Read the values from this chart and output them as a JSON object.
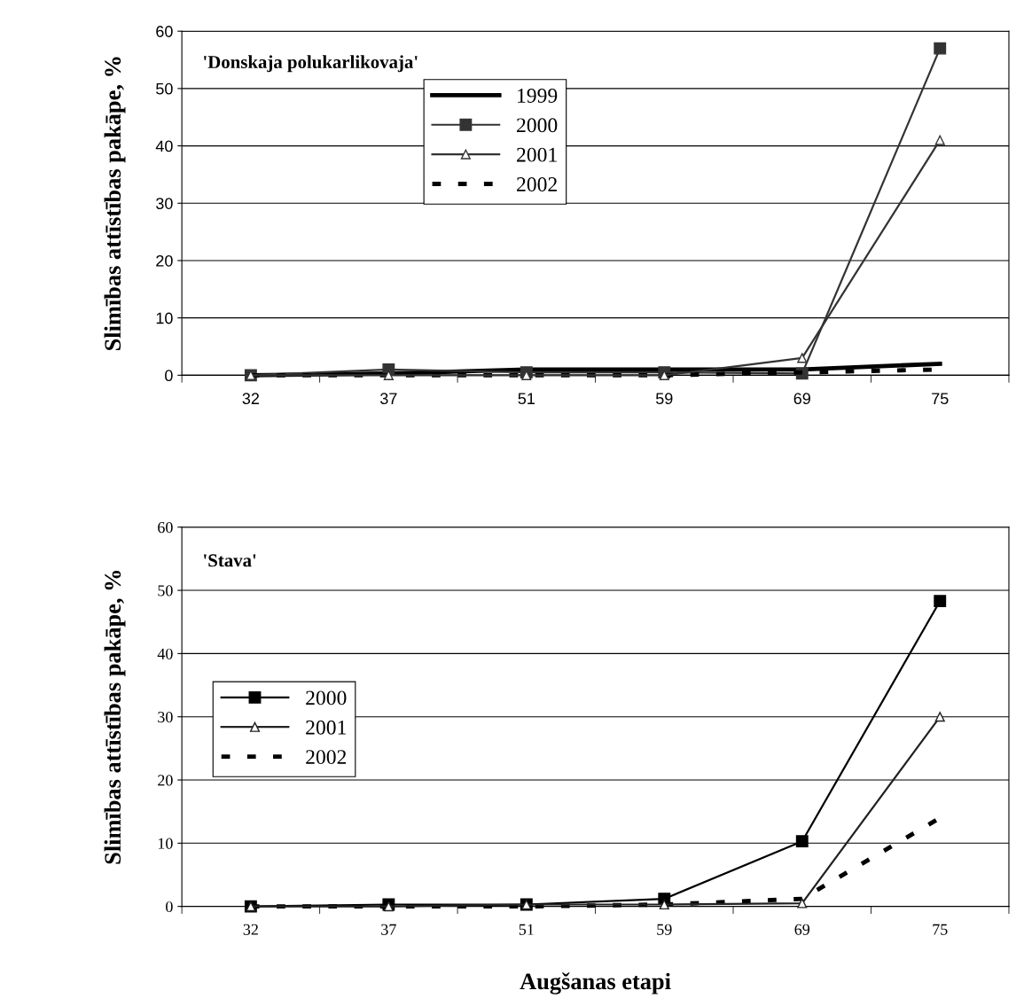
{
  "chart_data": [
    {
      "type": "line",
      "title": "'Donskaja polukarlikovaja'",
      "ylabel": "Slimības attīstības pakāpe, %",
      "categories": [
        "32",
        "37",
        "51",
        "59",
        "69",
        "75"
      ],
      "ylim": [
        0,
        60
      ],
      "yticks": [
        0,
        10,
        20,
        30,
        40,
        50,
        60
      ],
      "grid": "y",
      "legend": "top",
      "series": [
        {
          "name": "1999",
          "color": "#000000",
          "values": [
            0,
            0.3,
            1,
            1,
            1,
            2
          ],
          "marker": "none",
          "line_style": "solid"
        },
        {
          "name": "2000",
          "color": "#333333",
          "values": [
            0,
            1,
            0.5,
            0.5,
            0.3,
            57
          ],
          "marker": "square",
          "line_style": "solid"
        },
        {
          "name": "2001",
          "color": "#333333",
          "values": [
            0,
            0,
            0,
            0,
            3,
            41
          ],
          "marker": "triangle",
          "line_style": "solid"
        },
        {
          "name": "2002",
          "color": "#000000",
          "values": [
            0,
            0,
            0,
            0,
            0.5,
            1
          ],
          "marker": "none",
          "line_style": "dashed"
        }
      ]
    },
    {
      "type": "line",
      "title": "'Stava'",
      "xlabel": "Augšanas etapi",
      "ylabel": "Slimības attīstības pakāpe, %",
      "categories": [
        "32",
        "37",
        "51",
        "59",
        "69",
        "75"
      ],
      "ylim": [
        0,
        60
      ],
      "yticks": [
        0,
        10,
        20,
        30,
        40,
        50,
        60
      ],
      "grid": "y",
      "legend": "left",
      "series": [
        {
          "name": "2000",
          "color": "#000000",
          "values": [
            0,
            0.3,
            0.3,
            1.2,
            10.3,
            48.3
          ],
          "marker": "square",
          "line_style": "solid"
        },
        {
          "name": "2001",
          "color": "#222222",
          "values": [
            0,
            0,
            0.3,
            0.3,
            0.5,
            30
          ],
          "marker": "triangle",
          "line_style": "solid"
        },
        {
          "name": "2002",
          "color": "#000000",
          "values": [
            0,
            0,
            0,
            0.3,
            1.2,
            14
          ],
          "marker": "none",
          "line_style": "dashed"
        }
      ]
    }
  ]
}
